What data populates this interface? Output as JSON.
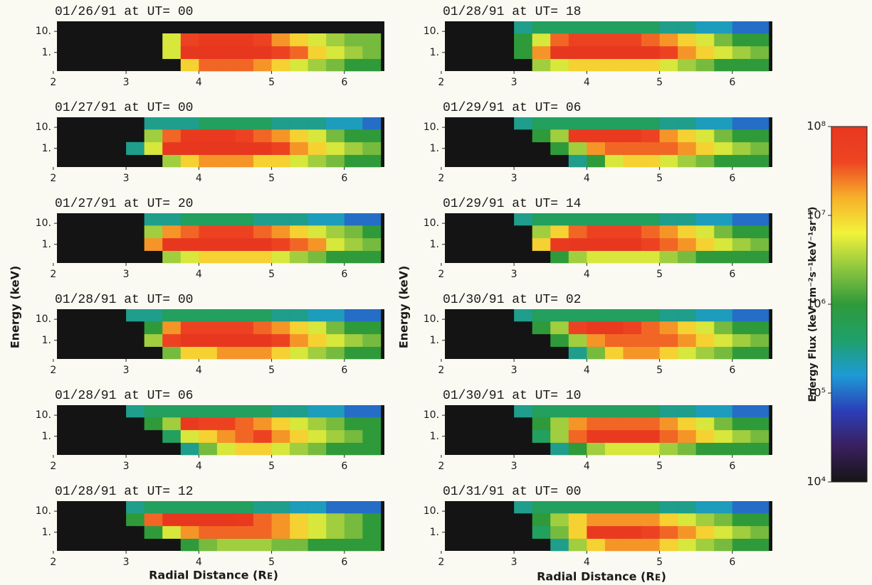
{
  "chart_data": {
    "type": "heatmap",
    "ylabel": "Energy (keV)",
    "xlabel": "Radial Distance (Rᴇ)",
    "log_y": true,
    "xlim": [
      2.05,
      6.55
    ],
    "xticks": [
      2,
      3,
      4,
      5,
      6
    ],
    "ylim": [
      0.13,
      30
    ],
    "yticks": [
      {
        "value": 10,
        "label": "10."
      },
      {
        "value": 1,
        "label": "1."
      }
    ],
    "xbins": [
      3,
      3.25,
      3.5,
      3.75,
      4,
      4.25,
      4.5,
      4.75,
      5,
      5.25,
      5.5,
      5.75,
      6,
      6.25,
      6.5
    ],
    "ybins": [
      0.13,
      0.5,
      2,
      8,
      30
    ],
    "colorbar": {
      "label": "Energy Flux (keV cm⁻²s⁻¹keV⁻¹sr⁻¹)",
      "log": true,
      "lim": [
        10000,
        100000000
      ],
      "ticks": [
        {
          "value": 100000000,
          "label": "10⁸"
        },
        {
          "value": 10000000,
          "label": "10⁷"
        },
        {
          "value": 1000000,
          "label": "10⁶"
        },
        {
          "value": 100000,
          "label": "10⁵"
        },
        {
          "value": 10000,
          "label": "10⁴"
        }
      ],
      "colormap": [
        "#151515",
        "#3a1f5e",
        "#2b3fb8",
        "#1e9ad6",
        "#1fa06a",
        "#2f9a3a",
        "#8dc63f",
        "#f2f23a",
        "#f7b02a",
        "#ee4523",
        "#e8371f"
      ]
    },
    "panels": [
      {
        "title": "01/26/91 at UT= 00",
        "values": [
          [
            null,
            null,
            null,
            10000000.0,
            30000000.0,
            30000000.0,
            30000000.0,
            20000000.0,
            10000000.0,
            5000000.0,
            3000000.0,
            2000000.0,
            1000000.0,
            1000000.0
          ],
          [
            null,
            null,
            5000000.0,
            100000000.0,
            100000000.0,
            100000000.0,
            100000000.0,
            100000000.0,
            50000000.0,
            30000000.0,
            10000000.0,
            5000000.0,
            3000000.0,
            2000000.0
          ],
          [
            null,
            null,
            5000000.0,
            50000000.0,
            80000000.0,
            80000000.0,
            80000000.0,
            50000000.0,
            20000000.0,
            10000000.0,
            5000000.0,
            3000000.0,
            2000000.0,
            2000000.0
          ],
          [
            null,
            null,
            null,
            null,
            null,
            null,
            null,
            null,
            null,
            null,
            null,
            null,
            null,
            null
          ]
        ]
      },
      {
        "title": "01/27/91 at UT= 00",
        "values": [
          [
            null,
            null,
            3000000.0,
            10000000.0,
            20000000.0,
            20000000.0,
            20000000.0,
            10000000.0,
            10000000.0,
            5000000.0,
            3000000.0,
            2000000.0,
            1000000.0,
            1000000.0
          ],
          [
            300000.0,
            5000000.0,
            100000000.0,
            100000000.0,
            100000000.0,
            100000000.0,
            100000000.0,
            100000000.0,
            50000000.0,
            20000000.0,
            10000000.0,
            5000000.0,
            3000000.0,
            2000000.0
          ],
          [
            null,
            3000000.0,
            30000000.0,
            80000000.0,
            80000000.0,
            80000000.0,
            50000000.0,
            30000000.0,
            20000000.0,
            10000000.0,
            5000000.0,
            2000000.0,
            1000000.0,
            1000000.0
          ],
          [
            null,
            300000.0,
            300000.0,
            300000.0,
            500000.0,
            500000.0,
            500000.0,
            500000.0,
            300000.0,
            300000.0,
            300000.0,
            200000.0,
            200000.0,
            100000.0
          ]
        ]
      },
      {
        "title": "01/27/91 at UT= 20",
        "values": [
          [
            null,
            null,
            3000000.0,
            5000000.0,
            10000000.0,
            10000000.0,
            10000000.0,
            10000000.0,
            5000000.0,
            3000000.0,
            2000000.0,
            1000000.0,
            1000000.0,
            1000000.0
          ],
          [
            null,
            20000000.0,
            100000000.0,
            100000000.0,
            100000000.0,
            100000000.0,
            100000000.0,
            100000000.0,
            50000000.0,
            30000000.0,
            20000000.0,
            5000000.0,
            3000000.0,
            2000000.0
          ],
          [
            null,
            3000000.0,
            20000000.0,
            30000000.0,
            50000000.0,
            50000000.0,
            50000000.0,
            30000000.0,
            20000000.0,
            10000000.0,
            5000000.0,
            3000000.0,
            2000000.0,
            1000000.0
          ],
          [
            null,
            300000.0,
            300000.0,
            500000.0,
            500000.0,
            500000.0,
            500000.0,
            300000.0,
            300000.0,
            300000.0,
            200000.0,
            200000.0,
            100000.0,
            100000.0
          ]
        ]
      },
      {
        "title": "01/28/91 at UT= 00",
        "values": [
          [
            null,
            null,
            2000000.0,
            10000000.0,
            10000000.0,
            20000000.0,
            20000000.0,
            20000000.0,
            10000000.0,
            5000000.0,
            3000000.0,
            2000000.0,
            1000000.0,
            1000000.0
          ],
          [
            null,
            3000000.0,
            50000000.0,
            100000000.0,
            100000000.0,
            100000000.0,
            100000000.0,
            100000000.0,
            50000000.0,
            20000000.0,
            10000000.0,
            5000000.0,
            3000000.0,
            2000000.0
          ],
          [
            null,
            1000000.0,
            20000000.0,
            50000000.0,
            50000000.0,
            50000000.0,
            50000000.0,
            30000000.0,
            20000000.0,
            10000000.0,
            5000000.0,
            2000000.0,
            1000000.0,
            1000000.0
          ],
          [
            300000.0,
            300000.0,
            500000.0,
            500000.0,
            500000.0,
            500000.0,
            500000.0,
            500000.0,
            300000.0,
            300000.0,
            200000.0,
            200000.0,
            100000.0,
            100000.0
          ]
        ]
      },
      {
        "title": "01/28/91 at UT= 06",
        "values": [
          [
            null,
            null,
            null,
            300000.0,
            2000000.0,
            5000000.0,
            10000000.0,
            10000000.0,
            5000000.0,
            3000000.0,
            2000000.0,
            1000000.0,
            1000000.0,
            1000000.0
          ],
          [
            null,
            null,
            500000.0,
            5000000.0,
            10000000.0,
            20000000.0,
            30000000.0,
            50000000.0,
            20000000.0,
            10000000.0,
            5000000.0,
            3000000.0,
            2000000.0,
            1000000.0
          ],
          [
            null,
            1000000.0,
            3000000.0,
            80000000.0,
            50000000.0,
            50000000.0,
            30000000.0,
            20000000.0,
            10000000.0,
            5000000.0,
            3000000.0,
            2000000.0,
            1000000.0,
            1000000.0
          ],
          [
            300000.0,
            500000.0,
            500000.0,
            500000.0,
            500000.0,
            500000.0,
            500000.0,
            500000.0,
            300000.0,
            300000.0,
            200000.0,
            200000.0,
            100000.0,
            100000.0
          ]
        ]
      },
      {
        "title": "01/28/91 at UT= 12",
        "values": [
          [
            null,
            null,
            null,
            1000000.0,
            2000000.0,
            3000000.0,
            3000000.0,
            3000000.0,
            2000000.0,
            2000000.0,
            1000000.0,
            1000000.0,
            1000000.0,
            1000000.0
          ],
          [
            null,
            1000000.0,
            5000000.0,
            20000000.0,
            30000000.0,
            30000000.0,
            30000000.0,
            30000000.0,
            20000000.0,
            10000000.0,
            5000000.0,
            3000000.0,
            2000000.0,
            1000000.0
          ],
          [
            1000000.0,
            30000000.0,
            100000000.0,
            100000000.0,
            100000000.0,
            100000000.0,
            80000000.0,
            30000000.0,
            20000000.0,
            10000000.0,
            5000000.0,
            3000000.0,
            2000000.0,
            1000000.0
          ],
          [
            300000.0,
            500000.0,
            500000.0,
            500000.0,
            500000.0,
            500000.0,
            500000.0,
            300000.0,
            300000.0,
            200000.0,
            200000.0,
            100000.0,
            100000.0,
            100000.0
          ]
        ]
      },
      {
        "title": "01/28/91 at UT= 18",
        "values": [
          [
            null,
            3000000.0,
            5000000.0,
            10000000.0,
            10000000.0,
            10000000.0,
            10000000.0,
            10000000.0,
            5000000.0,
            3000000.0,
            2000000.0,
            1000000.0,
            1000000.0,
            1000000.0
          ],
          [
            1000000.0,
            20000000.0,
            100000000.0,
            100000000.0,
            100000000.0,
            100000000.0,
            100000000.0,
            100000000.0,
            50000000.0,
            20000000.0,
            10000000.0,
            5000000.0,
            3000000.0,
            2000000.0
          ],
          [
            1000000.0,
            5000000.0,
            30000000.0,
            50000000.0,
            50000000.0,
            50000000.0,
            50000000.0,
            30000000.0,
            20000000.0,
            10000000.0,
            5000000.0,
            2000000.0,
            1000000.0,
            1000000.0
          ],
          [
            300000.0,
            500000.0,
            500000.0,
            500000.0,
            500000.0,
            500000.0,
            500000.0,
            500000.0,
            300000.0,
            300000.0,
            200000.0,
            200000.0,
            100000.0,
            100000.0
          ]
        ]
      },
      {
        "title": "01/29/91 at UT= 06",
        "values": [
          [
            null,
            null,
            null,
            300000.0,
            1000000.0,
            5000000.0,
            10000000.0,
            10000000.0,
            5000000.0,
            3000000.0,
            2000000.0,
            1000000.0,
            1000000.0,
            1000000.0
          ],
          [
            null,
            null,
            1000000.0,
            3000000.0,
            20000000.0,
            30000000.0,
            30000000.0,
            30000000.0,
            30000000.0,
            20000000.0,
            10000000.0,
            5000000.0,
            3000000.0,
            2000000.0
          ],
          [
            null,
            1000000.0,
            3000000.0,
            80000000.0,
            80000000.0,
            80000000.0,
            80000000.0,
            50000000.0,
            20000000.0,
            10000000.0,
            5000000.0,
            2000000.0,
            1000000.0,
            1000000.0
          ],
          [
            300000.0,
            500000.0,
            500000.0,
            500000.0,
            500000.0,
            500000.0,
            500000.0,
            500000.0,
            300000.0,
            300000.0,
            200000.0,
            200000.0,
            100000.0,
            100000.0
          ]
        ]
      },
      {
        "title": "01/29/91 at UT= 14",
        "values": [
          [
            null,
            null,
            1000000.0,
            3000000.0,
            5000000.0,
            5000000.0,
            5000000.0,
            5000000.0,
            3000000.0,
            2000000.0,
            1000000.0,
            1000000.0,
            1000000.0,
            1000000.0
          ],
          [
            null,
            10000000.0,
            80000000.0,
            100000000.0,
            100000000.0,
            100000000.0,
            100000000.0,
            50000000.0,
            30000000.0,
            20000000.0,
            10000000.0,
            5000000.0,
            3000000.0,
            2000000.0
          ],
          [
            null,
            3000000.0,
            10000000.0,
            30000000.0,
            50000000.0,
            50000000.0,
            50000000.0,
            30000000.0,
            20000000.0,
            10000000.0,
            5000000.0,
            2000000.0,
            1000000.0,
            1000000.0
          ],
          [
            300000.0,
            500000.0,
            500000.0,
            500000.0,
            500000.0,
            500000.0,
            500000.0,
            500000.0,
            300000.0,
            300000.0,
            200000.0,
            200000.0,
            100000.0,
            100000.0
          ]
        ]
      },
      {
        "title": "01/30/91 at UT= 02",
        "values": [
          [
            null,
            null,
            null,
            300000.0,
            2000000.0,
            10000000.0,
            20000000.0,
            20000000.0,
            10000000.0,
            5000000.0,
            3000000.0,
            2000000.0,
            1000000.0,
            1000000.0
          ],
          [
            null,
            null,
            1000000.0,
            3000000.0,
            20000000.0,
            30000000.0,
            30000000.0,
            30000000.0,
            30000000.0,
            20000000.0,
            10000000.0,
            5000000.0,
            3000000.0,
            2000000.0
          ],
          [
            null,
            1000000.0,
            3000000.0,
            50000000.0,
            80000000.0,
            80000000.0,
            50000000.0,
            30000000.0,
            20000000.0,
            10000000.0,
            5000000.0,
            2000000.0,
            1000000.0,
            1000000.0
          ],
          [
            300000.0,
            500000.0,
            500000.0,
            500000.0,
            500000.0,
            500000.0,
            500000.0,
            500000.0,
            300000.0,
            300000.0,
            200000.0,
            200000.0,
            100000.0,
            100000.0
          ]
        ]
      },
      {
        "title": "01/30/91 at UT= 10",
        "values": [
          [
            null,
            null,
            300000.0,
            1000000.0,
            3000000.0,
            5000000.0,
            5000000.0,
            5000000.0,
            3000000.0,
            2000000.0,
            1000000.0,
            1000000.0,
            1000000.0,
            1000000.0
          ],
          [
            null,
            500000.0,
            3000000.0,
            30000000.0,
            80000000.0,
            80000000.0,
            80000000.0,
            80000000.0,
            30000000.0,
            20000000.0,
            10000000.0,
            5000000.0,
            3000000.0,
            2000000.0
          ],
          [
            null,
            1000000.0,
            3000000.0,
            20000000.0,
            30000000.0,
            30000000.0,
            30000000.0,
            30000000.0,
            20000000.0,
            10000000.0,
            5000000.0,
            2000000.0,
            1000000.0,
            1000000.0
          ],
          [
            300000.0,
            500000.0,
            500000.0,
            500000.0,
            500000.0,
            500000.0,
            500000.0,
            500000.0,
            300000.0,
            300000.0,
            200000.0,
            200000.0,
            100000.0,
            100000.0
          ]
        ]
      },
      {
        "title": "01/31/91 at UT= 00",
        "values": [
          [
            null,
            null,
            300000.0,
            3000000.0,
            10000000.0,
            20000000.0,
            20000000.0,
            20000000.0,
            10000000.0,
            5000000.0,
            3000000.0,
            2000000.0,
            1000000.0,
            1000000.0
          ],
          [
            null,
            500000.0,
            2000000.0,
            10000000.0,
            80000000.0,
            80000000.0,
            80000000.0,
            50000000.0,
            30000000.0,
            20000000.0,
            10000000.0,
            5000000.0,
            3000000.0,
            2000000.0
          ],
          [
            null,
            1000000.0,
            3000000.0,
            10000000.0,
            20000000.0,
            20000000.0,
            20000000.0,
            20000000.0,
            10000000.0,
            5000000.0,
            3000000.0,
            2000000.0,
            1000000.0,
            1000000.0
          ],
          [
            300000.0,
            500000.0,
            500000.0,
            500000.0,
            500000.0,
            500000.0,
            500000.0,
            500000.0,
            300000.0,
            300000.0,
            200000.0,
            200000.0,
            100000.0,
            100000.0
          ]
        ]
      }
    ]
  }
}
